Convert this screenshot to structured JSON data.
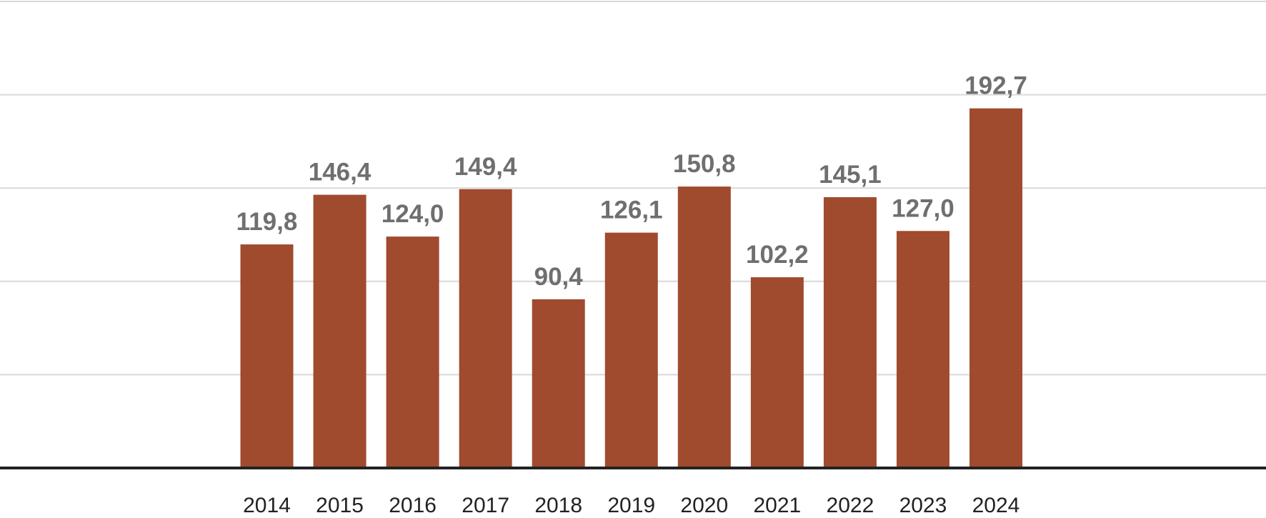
{
  "chart_data": {
    "type": "bar",
    "categories": [
      "2014",
      "2015",
      "2016",
      "2017",
      "2018",
      "2019",
      "2020",
      "2021",
      "2022",
      "2023",
      "2024"
    ],
    "values": [
      119.8,
      146.4,
      124.0,
      149.4,
      90.4,
      126.1,
      150.8,
      102.2,
      145.1,
      127.0,
      192.7
    ],
    "value_labels": [
      "119,8",
      "146,4",
      "124,0",
      "149,4",
      "90,4",
      "126,1",
      "150,8",
      "102,2",
      "145,1",
      "127,0",
      "192,7"
    ],
    "title": "",
    "xlabel": "",
    "ylabel": "",
    "ylim": [
      0,
      250
    ],
    "y_grid_step": 50,
    "grid": true,
    "y_tick_labels_shown": false,
    "legend": "none",
    "colors": {
      "bar": "#a04a2e",
      "grid": "#d9d9d9",
      "axis": "#222222",
      "value_label": "#6f6f6f",
      "tick_label": "#222222"
    }
  }
}
